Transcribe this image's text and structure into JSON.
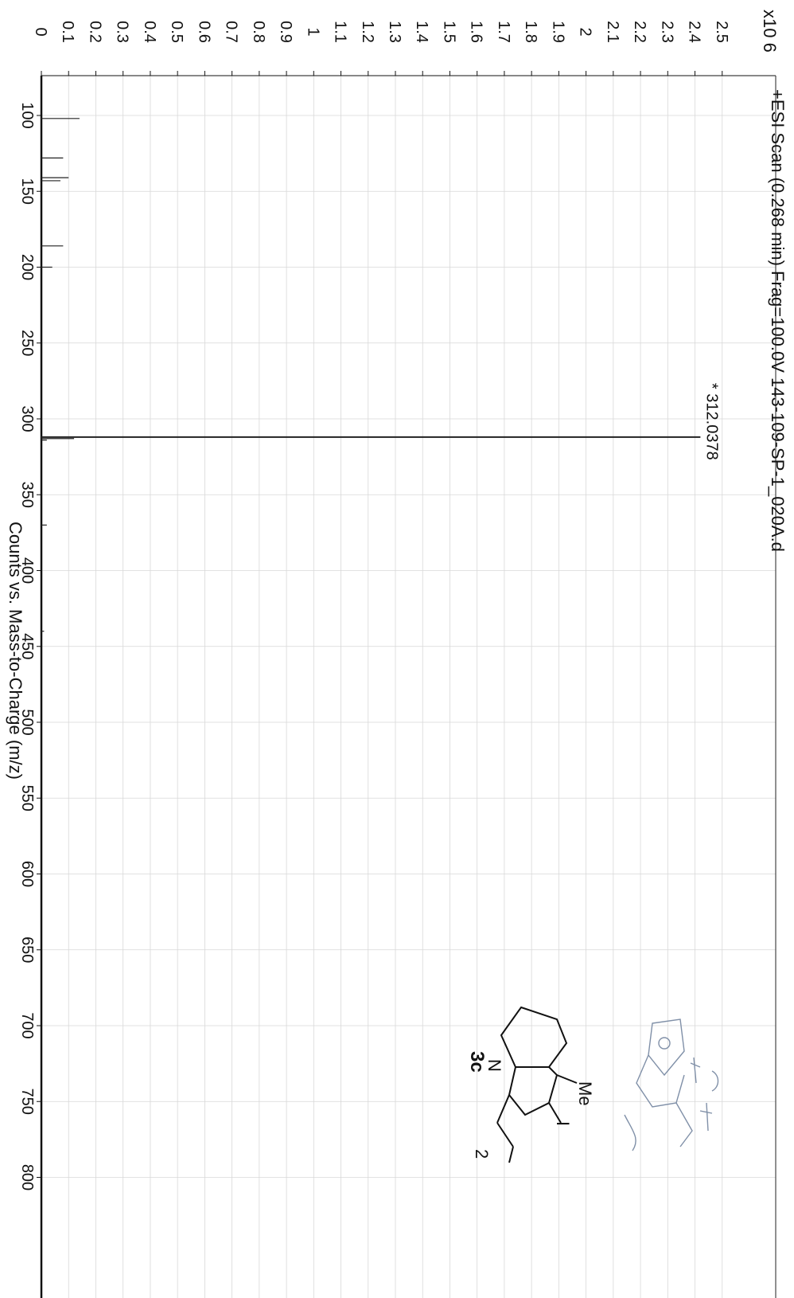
{
  "chart_data": {
    "type": "bar",
    "title": "+ESI Scan (0.268 min) Frag=100.0V 143-109-SP-1_020A.d",
    "y_multiplier": "x10 6",
    "xlabel": "Counts vs. Mass-to-Charge (m/z)",
    "ylabel": "",
    "xlim": [
      75,
      855
    ],
    "ylim": [
      0,
      2.6
    ],
    "x_ticks": [
      "100",
      "150",
      "200",
      "250",
      "300",
      "350",
      "400",
      "450",
      "500",
      "550",
      "600",
      "650",
      "700",
      "750",
      "800"
    ],
    "y_ticks": [
      "0",
      "0.1",
      "0.2",
      "0.3",
      "0.4",
      "0.5",
      "0.6",
      "0.7",
      "0.8",
      "0.9",
      "1",
      "1.1",
      "1.2",
      "1.3",
      "1.4",
      "1.5",
      "1.6",
      "1.7",
      "1.8",
      "1.9",
      "2",
      "2.1",
      "2.2",
      "2.3",
      "2.4",
      "2.5"
    ],
    "grid": true,
    "peaks": [
      {
        "mz": 102,
        "intensity": 0.14
      },
      {
        "mz": 128,
        "intensity": 0.08
      },
      {
        "mz": 141,
        "intensity": 0.1
      },
      {
        "mz": 143,
        "intensity": 0.07
      },
      {
        "mz": 186,
        "intensity": 0.08
      },
      {
        "mz": 200,
        "intensity": 0.04
      },
      {
        "mz": 312.0378,
        "intensity": 2.42
      },
      {
        "mz": 313,
        "intensity": 0.12
      },
      {
        "mz": 314,
        "intensity": 0.02
      },
      {
        "mz": 370,
        "intensity": 0.02
      },
      {
        "mz": 440,
        "intensity": 0.01
      }
    ],
    "annotations": [
      {
        "text": "* 312.0378",
        "mz": 312.0378
      }
    ]
  },
  "structure": {
    "compound_label": "3c",
    "atom_n": "N",
    "substituent_me": "Me",
    "substituent_i": "I",
    "chain_subscript": "2"
  }
}
